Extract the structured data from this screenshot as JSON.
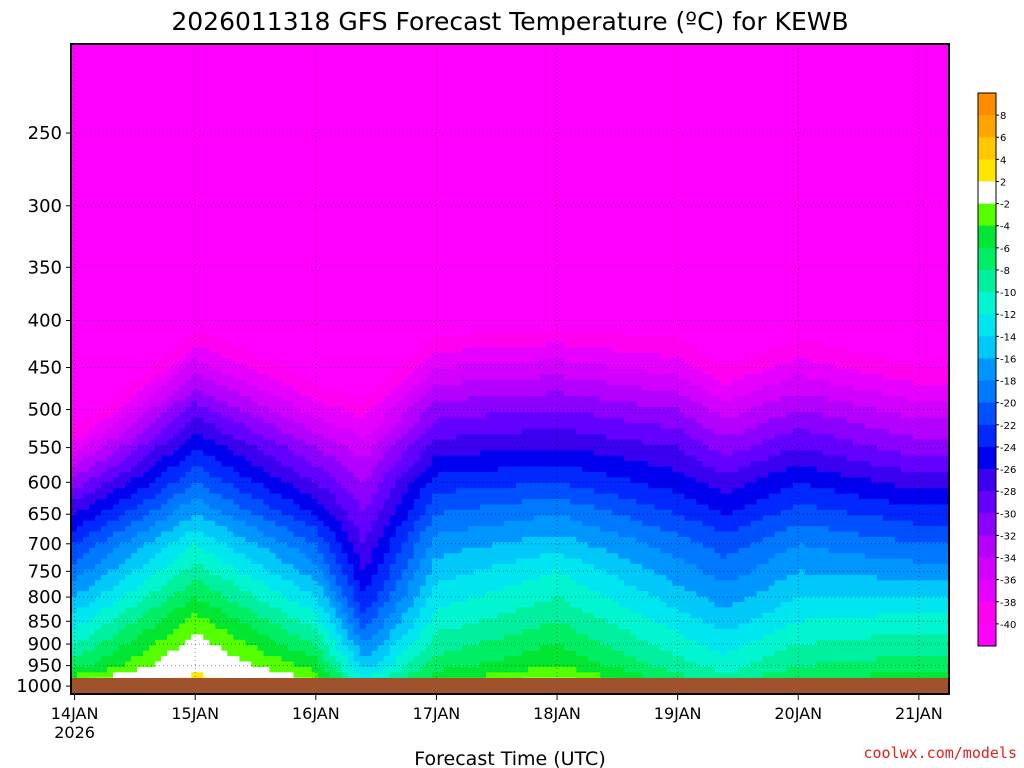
{
  "chart_data": {
    "type": "heatmap",
    "title": "2026011318 GFS Forecast Temperature (ºC) for KEWB",
    "xlabel": "Forecast Time (UTC)",
    "ylabel": "",
    "credit": "coolwx.com/models",
    "x_ticks": [
      {
        "day": 0,
        "label": "14JAN",
        "sub": "2026"
      },
      {
        "day": 1,
        "label": "15JAN",
        "sub": ""
      },
      {
        "day": 2,
        "label": "16JAN",
        "sub": ""
      },
      {
        "day": 3,
        "label": "17JAN",
        "sub": ""
      },
      {
        "day": 4,
        "label": "18JAN",
        "sub": ""
      },
      {
        "day": 5,
        "label": "19JAN",
        "sub": ""
      },
      {
        "day": 6,
        "label": "20JAN",
        "sub": ""
      },
      {
        "day": 7,
        "label": "21JAN",
        "sub": ""
      }
    ],
    "xlim_days": [
      -0.03,
      7.25
    ],
    "y_ticks_hpa": [
      250,
      300,
      350,
      400,
      450,
      500,
      550,
      600,
      650,
      700,
      750,
      800,
      850,
      900,
      950,
      1000
    ],
    "ylim_hpa": [
      200,
      1020
    ],
    "colorbar": {
      "labels": [
        "8",
        "6",
        "4",
        "2",
        "-2",
        "-4",
        "-6",
        "-8",
        "-10",
        "-12",
        "-14",
        "-16",
        "-18",
        "-20",
        "-22",
        "-24",
        "-26",
        "-28",
        "-30",
        "-32",
        "-34",
        "-36",
        "-38",
        "-40"
      ],
      "colors": [
        "#ff8c00",
        "#ffa500",
        "#ffc800",
        "#ffe600",
        "#ffffff",
        "#55ff00",
        "#00e632",
        "#00ee64",
        "#00f0a0",
        "#00f5d0",
        "#00e6f0",
        "#00c8f8",
        "#0096ff",
        "#0078ff",
        "#0050ff",
        "#0028ff",
        "#0000f0",
        "#3c00f0",
        "#6400ff",
        "#8c00ff",
        "#b400ff",
        "#d200ff",
        "#e600ff",
        "#ff00f0",
        "#ff00ff"
      ]
    },
    "temperature_profile": {
      "levels_hpa": [
        1000,
        950,
        900,
        850,
        800,
        750,
        700,
        650,
        600,
        550,
        500,
        450,
        400,
        350,
        300,
        250,
        200
      ],
      "times_day": [
        0,
        1,
        2,
        2.4,
        3,
        4,
        5,
        5.4,
        6,
        7
      ],
      "temps": [
        [
          -1,
          -7,
          -10,
          -13,
          -16,
          -19,
          -22,
          -26,
          -31,
          -37,
          -43,
          -49,
          -55,
          -57,
          -58,
          -59,
          -60
        ],
        [
          4,
          1,
          -1,
          -3,
          -6,
          -9,
          -12,
          -16,
          -20,
          -24,
          -29,
          -35,
          -41,
          -47,
          -52,
          -57,
          -60
        ],
        [
          -1,
          -5,
          -8,
          -11,
          -14,
          -17,
          -20,
          -24,
          -28,
          -32,
          -37,
          -42,
          -47,
          -51,
          -55,
          -58,
          -60
        ],
        [
          -11,
          -15,
          -18,
          -21,
          -24,
          -26,
          -28,
          -30,
          -32,
          -35,
          -39,
          -44,
          -49,
          -53,
          -56,
          -58,
          -60
        ],
        [
          -3,
          -7,
          -9,
          -11,
          -13,
          -15,
          -17,
          -20,
          -23,
          -27,
          -31,
          -36,
          -42,
          -47,
          -52,
          -56,
          -60
        ],
        [
          0,
          -4,
          -6,
          -8,
          -10,
          -12,
          -15,
          -18,
          -22,
          -26,
          -30,
          -35,
          -41,
          -46,
          -51,
          -55,
          -59
        ],
        [
          -6,
          -9,
          -11,
          -13,
          -15,
          -17,
          -19,
          -22,
          -25,
          -28,
          -32,
          -37,
          -42,
          -47,
          -52,
          -55,
          -58
        ],
        [
          -8,
          -11,
          -13,
          -15,
          -17,
          -19,
          -21,
          -24,
          -27,
          -31,
          -35,
          -40,
          -45,
          -49,
          -53,
          -56,
          -59
        ],
        [
          -5,
          -8,
          -10,
          -12,
          -14,
          -16,
          -18,
          -21,
          -24,
          -28,
          -32,
          -37,
          -42,
          -47,
          -51,
          -54,
          -57
        ],
        [
          -4,
          -7,
          -9,
          -11,
          -14,
          -17,
          -20,
          -23,
          -27,
          -31,
          -35,
          -40,
          -45,
          -49,
          -52,
          -55,
          -58
        ]
      ]
    },
    "ground_color": "#a0522d"
  }
}
